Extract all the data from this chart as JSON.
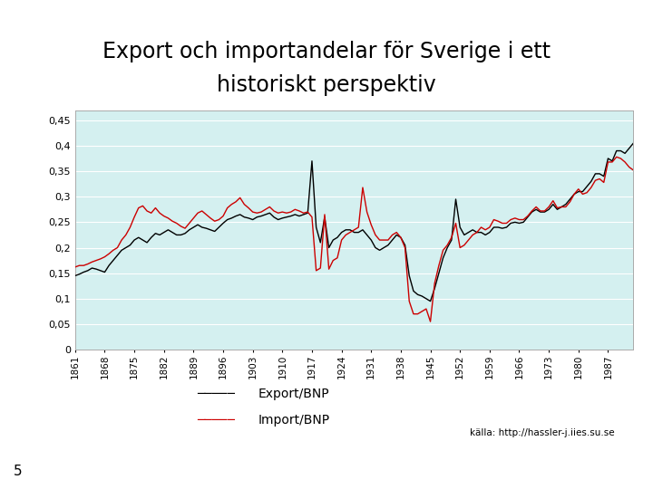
{
  "title_line1": "Export och importandelar för Sverige i ett",
  "title_line2": "historiskt perspektiv",
  "title_bar_color": "#1a3a1a",
  "bg_color": "#d4f0f0",
  "export_color": "#000000",
  "import_color": "#cc0000",
  "legend_export": "Export/BNP",
  "legend_import": "Import/BNP",
  "source_text": "källa: http://hassler-j.iies.su.se",
  "slide_number": "5",
  "years": [
    1861,
    1862,
    1863,
    1864,
    1865,
    1866,
    1867,
    1868,
    1869,
    1870,
    1871,
    1872,
    1873,
    1874,
    1875,
    1876,
    1877,
    1878,
    1879,
    1880,
    1881,
    1882,
    1883,
    1884,
    1885,
    1886,
    1887,
    1888,
    1889,
    1890,
    1891,
    1892,
    1893,
    1894,
    1895,
    1896,
    1897,
    1898,
    1899,
    1900,
    1901,
    1902,
    1903,
    1904,
    1905,
    1906,
    1907,
    1908,
    1909,
    1910,
    1911,
    1912,
    1913,
    1914,
    1915,
    1916,
    1917,
    1918,
    1919,
    1920,
    1921,
    1922,
    1923,
    1924,
    1925,
    1926,
    1927,
    1928,
    1929,
    1930,
    1931,
    1932,
    1933,
    1934,
    1935,
    1936,
    1937,
    1938,
    1939,
    1940,
    1941,
    1942,
    1943,
    1944,
    1945,
    1946,
    1947,
    1948,
    1949,
    1950,
    1951,
    1952,
    1953,
    1954,
    1955,
    1956,
    1957,
    1958,
    1959,
    1960,
    1961,
    1962,
    1963,
    1964,
    1965,
    1966,
    1967,
    1968,
    1969,
    1970,
    1971,
    1972,
    1973,
    1974,
    1975,
    1976,
    1977,
    1978,
    1979,
    1980,
    1981,
    1982,
    1983,
    1984,
    1985,
    1986,
    1987,
    1988,
    1989,
    1990,
    1991,
    1992,
    1993
  ],
  "export_bnp": [
    0.145,
    0.148,
    0.152,
    0.155,
    0.16,
    0.158,
    0.155,
    0.152,
    0.165,
    0.175,
    0.185,
    0.195,
    0.2,
    0.205,
    0.215,
    0.22,
    0.215,
    0.21,
    0.22,
    0.228,
    0.225,
    0.23,
    0.235,
    0.23,
    0.225,
    0.225,
    0.228,
    0.235,
    0.24,
    0.245,
    0.24,
    0.238,
    0.235,
    0.232,
    0.24,
    0.248,
    0.255,
    0.258,
    0.262,
    0.265,
    0.26,
    0.258,
    0.255,
    0.26,
    0.262,
    0.265,
    0.268,
    0.26,
    0.255,
    0.258,
    0.26,
    0.262,
    0.265,
    0.262,
    0.265,
    0.268,
    0.37,
    0.24,
    0.21,
    0.26,
    0.2,
    0.215,
    0.22,
    0.23,
    0.235,
    0.235,
    0.23,
    0.23,
    0.235,
    0.225,
    0.215,
    0.2,
    0.195,
    0.2,
    0.205,
    0.215,
    0.225,
    0.22,
    0.205,
    0.145,
    0.115,
    0.108,
    0.105,
    0.1,
    0.095,
    0.12,
    0.15,
    0.18,
    0.2,
    0.215,
    0.295,
    0.24,
    0.225,
    0.23,
    0.235,
    0.23,
    0.23,
    0.225,
    0.23,
    0.24,
    0.24,
    0.238,
    0.24,
    0.248,
    0.25,
    0.248,
    0.25,
    0.26,
    0.27,
    0.275,
    0.27,
    0.27,
    0.275,
    0.285,
    0.275,
    0.28,
    0.285,
    0.295,
    0.305,
    0.31,
    0.31,
    0.32,
    0.33,
    0.345,
    0.345,
    0.34,
    0.375,
    0.37,
    0.39,
    0.39,
    0.385,
    0.395,
    0.405
  ],
  "import_bnp": [
    0.162,
    0.165,
    0.165,
    0.168,
    0.172,
    0.175,
    0.178,
    0.182,
    0.188,
    0.195,
    0.2,
    0.215,
    0.225,
    0.24,
    0.26,
    0.278,
    0.282,
    0.272,
    0.268,
    0.278,
    0.268,
    0.262,
    0.258,
    0.252,
    0.248,
    0.242,
    0.238,
    0.248,
    0.258,
    0.268,
    0.272,
    0.265,
    0.258,
    0.252,
    0.255,
    0.262,
    0.278,
    0.285,
    0.29,
    0.298,
    0.285,
    0.278,
    0.27,
    0.268,
    0.27,
    0.275,
    0.28,
    0.272,
    0.268,
    0.27,
    0.268,
    0.27,
    0.275,
    0.272,
    0.268,
    0.27,
    0.26,
    0.155,
    0.16,
    0.265,
    0.158,
    0.175,
    0.18,
    0.215,
    0.225,
    0.23,
    0.235,
    0.24,
    0.318,
    0.27,
    0.245,
    0.225,
    0.215,
    0.215,
    0.215,
    0.225,
    0.23,
    0.22,
    0.2,
    0.095,
    0.07,
    0.07,
    0.075,
    0.08,
    0.055,
    0.13,
    0.165,
    0.195,
    0.205,
    0.22,
    0.248,
    0.2,
    0.205,
    0.215,
    0.225,
    0.23,
    0.24,
    0.235,
    0.24,
    0.255,
    0.252,
    0.248,
    0.248,
    0.255,
    0.258,
    0.255,
    0.255,
    0.262,
    0.272,
    0.28,
    0.272,
    0.272,
    0.28,
    0.292,
    0.278,
    0.28,
    0.28,
    0.29,
    0.305,
    0.315,
    0.305,
    0.308,
    0.318,
    0.332,
    0.335,
    0.328,
    0.368,
    0.368,
    0.378,
    0.375,
    0.368,
    0.358,
    0.352
  ],
  "yticks": [
    0,
    0.05,
    0.1,
    0.15,
    0.2,
    0.25,
    0.3,
    0.35,
    0.4,
    0.45
  ],
  "ytick_labels": [
    "0",
    "0,05",
    "0,1",
    "0,15",
    "0,2",
    "0,25",
    "0,3",
    "0,35",
    "0,4",
    "0,45"
  ],
  "xtick_years": [
    1861,
    1868,
    1875,
    1882,
    1889,
    1896,
    1903,
    1910,
    1917,
    1924,
    1931,
    1938,
    1945,
    1952,
    1959,
    1966,
    1973,
    1980,
    1987
  ],
  "ylim": [
    0,
    0.47
  ],
  "xlim": [
    1861,
    1993
  ]
}
